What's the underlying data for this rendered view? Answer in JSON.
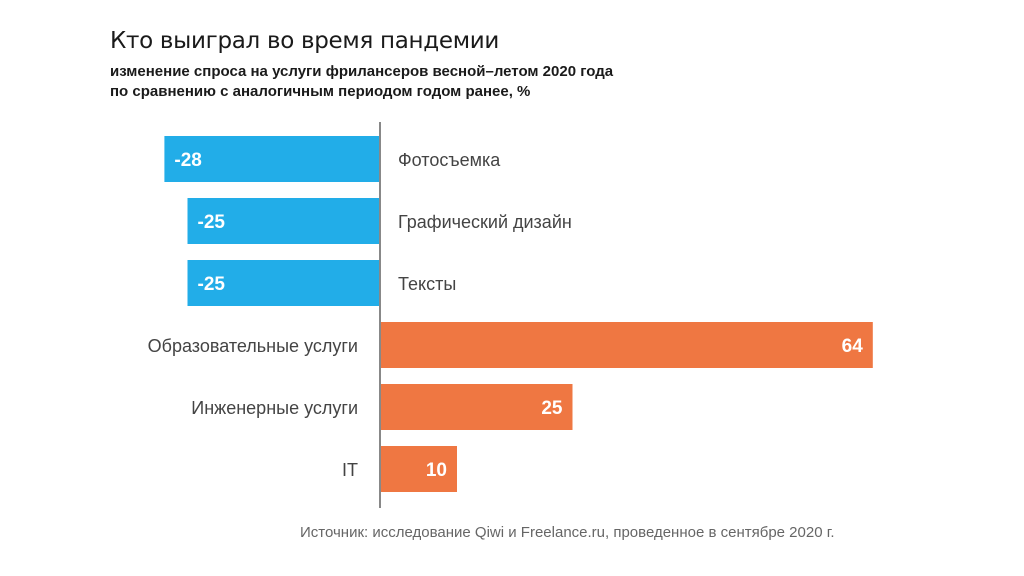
{
  "chart_data": {
    "type": "bar",
    "orientation": "horizontal",
    "title": "Кто выиграл во время пандемии",
    "subtitle_lines": [
      "изменение спроса на услуги фрилансеров весной–летом 2020 года",
      "по сравнению с аналогичным периодом годом ранее, %"
    ],
    "categories": [
      "Фотосъемка",
      "Графический дизайн",
      "Тексты",
      "Образовательные услуги",
      "Инженерные услуги",
      "IT"
    ],
    "values": [
      -28,
      -25,
      -25,
      64,
      25,
      10
    ],
    "value_labels": [
      "-28",
      "-25",
      "-25",
      "64",
      "25",
      "10"
    ],
    "xlim": [
      -28,
      64
    ],
    "grid": false,
    "colors": {
      "negative": "#22ade8",
      "positive": "#ef7742",
      "axis": "#888888"
    },
    "source": "Источник: исследование Qiwi и Freelance.ru, проведенное в сентябре 2020 г."
  }
}
